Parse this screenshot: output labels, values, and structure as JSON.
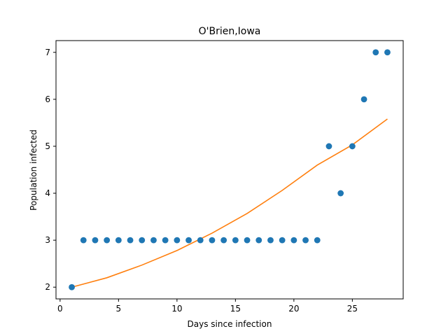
{
  "chart_data": {
    "type": "scatter",
    "title": "O'Brien,Iowa",
    "xlabel": "Days since infection",
    "ylabel": "Population infected",
    "xlim": [
      -0.35,
      29.35
    ],
    "ylim": [
      1.75,
      7.25
    ],
    "xticks": [
      0,
      5,
      10,
      15,
      20,
      25
    ],
    "yticks": [
      2,
      3,
      4,
      5,
      6,
      7
    ],
    "grid": false,
    "legend": "none",
    "series": [
      {
        "kind": "points",
        "color": "#1f77b4",
        "x": [
          1,
          2,
          3,
          4,
          5,
          6,
          7,
          8,
          9,
          10,
          11,
          12,
          13,
          14,
          15,
          16,
          17,
          18,
          19,
          20,
          21,
          22,
          23,
          24,
          25,
          26,
          27,
          28
        ],
        "y": [
          2,
          3,
          3,
          3,
          3,
          3,
          3,
          3,
          3,
          3,
          3,
          3,
          3,
          3,
          3,
          3,
          3,
          3,
          3,
          3,
          3,
          3,
          5,
          4,
          5,
          6,
          7,
          7
        ]
      },
      {
        "kind": "fit-line",
        "color": "#ff7f0e",
        "x": [
          1,
          4,
          7,
          10,
          13,
          16,
          19,
          22,
          25,
          28
        ],
        "y": [
          2.0,
          2.2,
          2.47,
          2.78,
          3.15,
          3.57,
          4.06,
          4.6,
          5.03,
          5.58
        ]
      }
    ]
  }
}
